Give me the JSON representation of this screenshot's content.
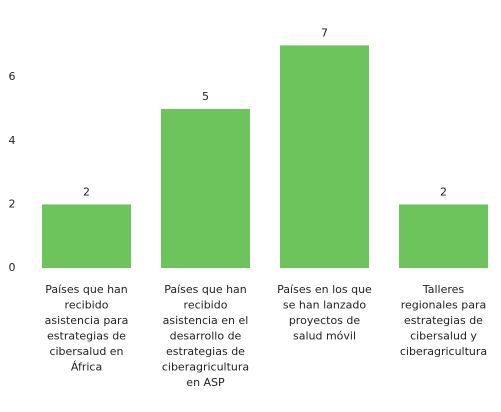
{
  "chart_data": {
    "type": "bar",
    "categories": [
      "Países que han\nrecibido\nasistencia para\nestrategias de\ncibersalud en\nÁfrica",
      "Países que han\nrecibido\nasistencia en el\ndesarrollo de\nestrategias de\nciberagricultura\nen ASP",
      "Países en los que\nse han lanzado\nproyectos de\nsalud móvil",
      "Talleres\nregionales para\nestrategias de\ncibersalud y\nciberagricultura"
    ],
    "values": [
      2,
      5,
      7,
      2
    ],
    "color": "#6ec45c",
    "ylim": [
      0,
      7.5
    ],
    "yticks": [
      0,
      2,
      4,
      6
    ],
    "grid": false
  }
}
